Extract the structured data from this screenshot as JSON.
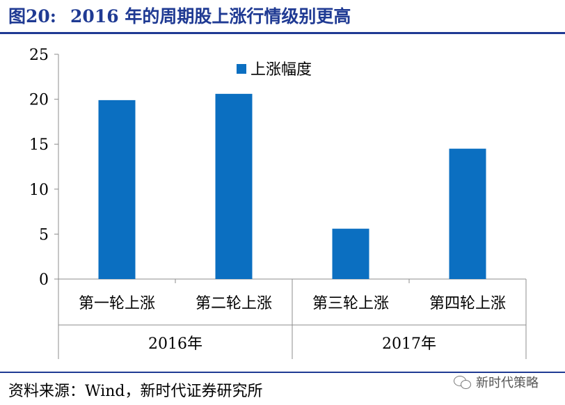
{
  "header": {
    "figure_number": "图20:",
    "title": "2016 年的周期股上涨行情级别更高"
  },
  "footer": {
    "source": "资料来源：Wind，新时代证券研究所",
    "watermark": "新时代策略",
    "watermark_icon": "wechat-icon"
  },
  "colors": {
    "bar": "#0B6FC1",
    "title": "#1f3a93",
    "axis": "#8c8c8c"
  },
  "chart_data": {
    "type": "bar",
    "title": "",
    "xlabel": "",
    "ylabel": "",
    "categories": [
      "第一轮上涨",
      "第二轮上涨",
      "第三轮上涨",
      "第四轮上涨"
    ],
    "groups": [
      {
        "label": "2016年",
        "categories": [
          "第一轮上涨",
          "第二轮上涨"
        ]
      },
      {
        "label": "2017年",
        "categories": [
          "第三轮上涨",
          "第四轮上涨"
        ]
      }
    ],
    "series": [
      {
        "name": "上涨幅度",
        "values": [
          19.9,
          20.6,
          5.6,
          14.5
        ]
      }
    ],
    "ylim": [
      0,
      25
    ],
    "yticks": [
      "0",
      "5",
      "10",
      "15",
      "20",
      "25"
    ],
    "grid": false,
    "legend": "top-center"
  }
}
